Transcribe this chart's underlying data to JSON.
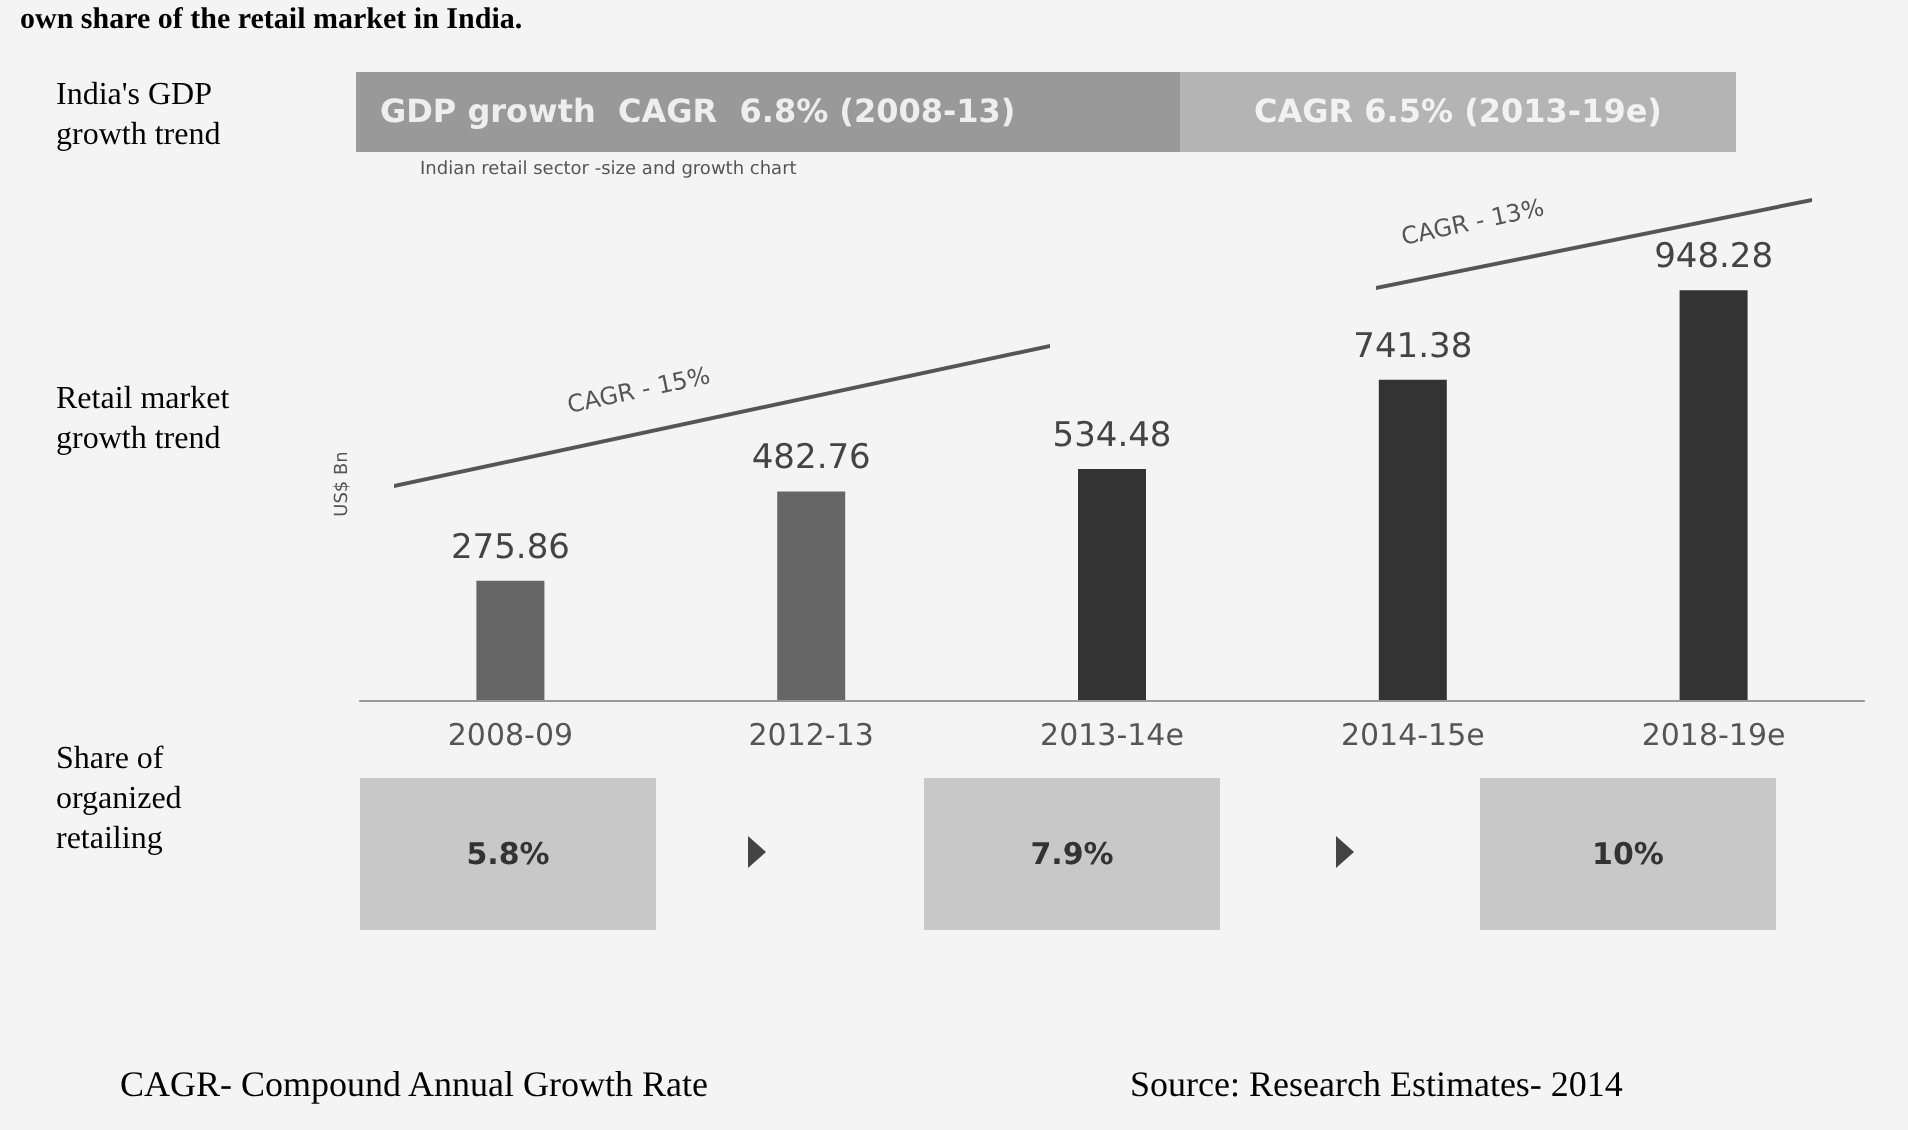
{
  "chart_data": {
    "type": "bar",
    "ylabel": "US$ Bn",
    "categories": [
      "2008-09",
      "2012-13",
      "2013-14e",
      "2014-15e",
      "2018-19e"
    ],
    "values": [
      275.86,
      482.76,
      534.48,
      741.38,
      948.28
    ],
    "colors": [
      "#666666",
      "#666666",
      "#333333",
      "#333333",
      "#333333"
    ],
    "data_labels": true,
    "annotations": [
      "own share of the retail market in India.",
      "India's GDP growth trend",
      "GDP growth  CAGR  6.8% (2008-13)",
      "CAGR 6.5% (2013-19e)",
      "Indian retail sector -size and growth chart",
      "Retail market growth trend",
      "CAGR - 15%",
      "CAGR - 13%",
      "Share of organized retailing",
      "5.8%",
      "7.9%",
      "10%",
      "CAGR- Compound Annual Growth Rate",
      "Source: Research Estimates- 2014"
    ]
  }
}
